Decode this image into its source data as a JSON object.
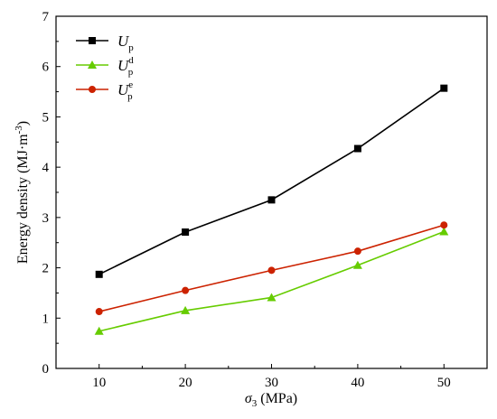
{
  "chart_data": {
    "type": "line",
    "xlabel_symbol": "σ",
    "xlabel_sub": "3",
    "xlabel_unit": " (MPa)",
    "ylabel": "Energy density (MJ·m",
    "ylabel_sup": "-3",
    "ylabel_end": ")",
    "x": [
      10,
      20,
      30,
      40,
      50
    ],
    "xlim": [
      5,
      55
    ],
    "ylim": [
      0,
      7
    ],
    "xticks": [
      "10",
      "20",
      "30",
      "40",
      "50"
    ],
    "yticks": [
      "0",
      "1",
      "2",
      "3",
      "4",
      "5",
      "6",
      "7"
    ],
    "legend_position": "top-left",
    "series": [
      {
        "name": "Up",
        "name_main": "U",
        "name_sub": "p",
        "name_sup": "",
        "marker": "square",
        "color": "#000000",
        "values": [
          1.87,
          2.71,
          3.35,
          4.37,
          5.57
        ]
      },
      {
        "name": "Udp",
        "name_main": "U",
        "name_sub": "p",
        "name_sup": "d",
        "marker": "triangle",
        "color": "#66cc00",
        "values": [
          0.74,
          1.15,
          1.41,
          2.05,
          2.72
        ]
      },
      {
        "name": "Uep",
        "name_main": "U",
        "name_sub": "p",
        "name_sup": "e",
        "marker": "circle",
        "color": "#cc2200",
        "values": [
          1.13,
          1.55,
          1.95,
          2.33,
          2.85
        ]
      }
    ]
  }
}
